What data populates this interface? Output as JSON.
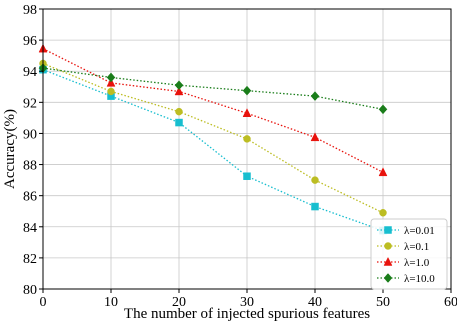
{
  "chart_data": {
    "type": "line",
    "xlabel": "The number of injected spurious features",
    "ylabel": "Accuracy(%)",
    "xlim": [
      0,
      60
    ],
    "ylim": [
      80,
      98
    ],
    "xticks": [
      0,
      10,
      20,
      30,
      40,
      50,
      60
    ],
    "yticks": [
      80,
      82,
      84,
      86,
      88,
      90,
      92,
      94,
      96,
      98
    ],
    "grid": true,
    "legend_position": "bottom-right",
    "x": [
      0,
      10,
      20,
      30,
      40,
      50
    ],
    "series": [
      {
        "name": "λ=0.01",
        "values": [
          94.1,
          92.4,
          90.7,
          87.25,
          85.3,
          83.75
        ],
        "color": "#17becf",
        "marker": "square",
        "line_style": "dotted"
      },
      {
        "name": "λ=0.1",
        "values": [
          94.5,
          92.7,
          91.4,
          89.65,
          87.0,
          84.9
        ],
        "color": "#bcbd22",
        "marker": "circle",
        "line_style": "dotted"
      },
      {
        "name": "λ=1.0",
        "values": [
          95.45,
          93.25,
          92.7,
          91.3,
          89.75,
          87.5
        ],
        "color": "#e8120c",
        "marker": "triangle",
        "line_style": "dotted"
      },
      {
        "name": "λ=10.0",
        "values": [
          94.2,
          93.6,
          93.1,
          92.75,
          92.4,
          91.55
        ],
        "color": "#1a7d1a",
        "marker": "diamond",
        "line_style": "dotted"
      }
    ]
  }
}
